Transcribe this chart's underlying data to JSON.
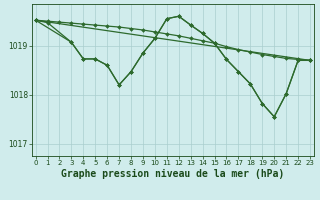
{
  "line_flat": {
    "x": [
      0,
      1,
      2,
      3,
      4,
      5,
      6,
      7,
      8,
      9,
      10,
      11,
      12,
      13,
      14,
      15,
      16,
      17,
      18,
      19,
      20,
      21,
      22,
      23
    ],
    "y": [
      1019.52,
      1019.5,
      1019.48,
      1019.46,
      1019.44,
      1019.42,
      1019.4,
      1019.38,
      1019.35,
      1019.32,
      1019.28,
      1019.24,
      1019.2,
      1019.15,
      1019.1,
      1019.05,
      1018.98,
      1018.92,
      1018.87,
      1018.82,
      1018.78,
      1018.74,
      1018.72,
      1018.7
    ]
  },
  "line_diagonal": {
    "x": [
      0,
      23
    ],
    "y": [
      1019.52,
      1018.7
    ]
  },
  "line_wave1": {
    "x": [
      0,
      1,
      3,
      4,
      5,
      6,
      7,
      8,
      9,
      10,
      11,
      12,
      13,
      14,
      15,
      16,
      17,
      18,
      19,
      20,
      21,
      22,
      23
    ],
    "y": [
      1019.52,
      1019.47,
      1019.07,
      1018.73,
      1018.73,
      1018.6,
      1018.2,
      1018.47,
      1018.85,
      1019.15,
      1019.55,
      1019.6,
      1019.42,
      1019.25,
      1019.05,
      1018.72,
      1018.47,
      1018.22,
      1017.82,
      1017.55,
      1018.02,
      1018.7,
      1018.7
    ]
  },
  "line_wave2": {
    "x": [
      0,
      3,
      4,
      5,
      6,
      7,
      8,
      9,
      10,
      11,
      12,
      13,
      14,
      15,
      16,
      17,
      18,
      19,
      20,
      21,
      22,
      23
    ],
    "y": [
      1019.52,
      1019.07,
      1018.73,
      1018.73,
      1018.6,
      1018.2,
      1018.47,
      1018.85,
      1019.15,
      1019.55,
      1019.6,
      1019.42,
      1019.25,
      1019.05,
      1018.72,
      1018.47,
      1018.22,
      1017.82,
      1017.55,
      1018.02,
      1018.7,
      1018.7
    ]
  },
  "line_color": "#2d6a2d",
  "bg_color": "#d0ecec",
  "grid_color": "#aacece",
  "title": "Graphe pression niveau de la mer (hPa)",
  "ylim": [
    1016.75,
    1019.85
  ],
  "yticks": [
    1017,
    1018,
    1019
  ],
  "xticks": [
    0,
    1,
    2,
    3,
    4,
    5,
    6,
    7,
    8,
    9,
    10,
    11,
    12,
    13,
    14,
    15,
    16,
    17,
    18,
    19,
    20,
    21,
    22,
    23
  ],
  "title_fontsize": 7,
  "title_color": "#1a4a1a",
  "axis_color": "#1a4a1a",
  "tick_fontsize": 5
}
